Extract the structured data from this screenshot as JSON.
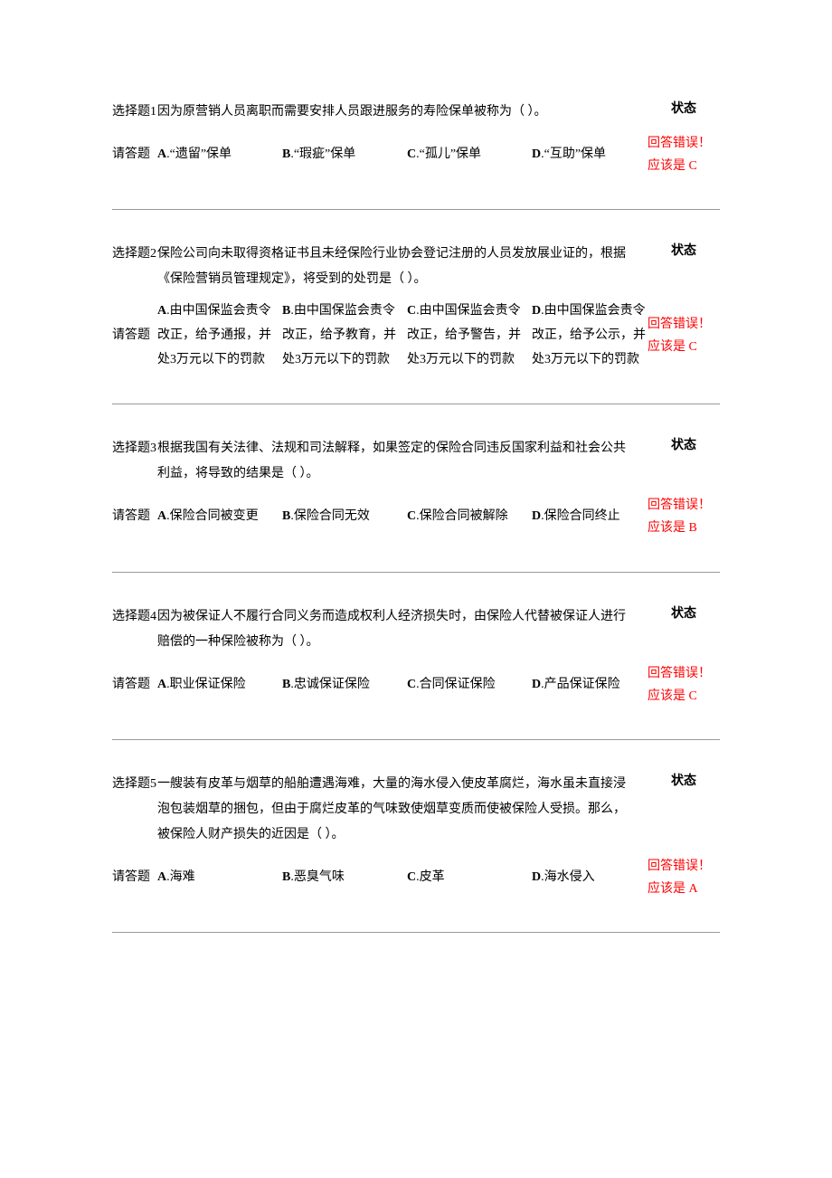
{
  "labels": {
    "status_header": "状态",
    "answer_prompt": "请答题",
    "error_line1": "回答错误！",
    "error_prefix": "应该是 "
  },
  "questions": [
    {
      "label": "选择题1",
      "text": "因为原营销人员离职而需要安排人员跟进服务的寿险保单被称为（ ）。",
      "options": [
        {
          "letter": "A",
          "text": ".“遗留”保单"
        },
        {
          "letter": "B",
          "text": ".“瑕疵”保单"
        },
        {
          "letter": "C",
          "text": ".“孤儿”保单"
        },
        {
          "letter": "D",
          "text": ".“互助”保单"
        }
      ],
      "correct": "C",
      "wrap": false
    },
    {
      "label": "选择题2",
      "text": "保险公司向未取得资格证书且未经保险行业协会登记注册的人员发放展业证的，根据《保险营销员管理规定》，将受到的处罚是（ ）。",
      "options": [
        {
          "letter": "A",
          "text": ".由中国保监会责令改正，给予通报，并处3万元以下的罚款"
        },
        {
          "letter": "B",
          "text": ".由中国保监会责令改正，给予教育，并处3万元以下的罚款"
        },
        {
          "letter": "C",
          "text": ".由中国保监会责令改正，给予警告，并处3万元以下的罚款"
        },
        {
          "letter": "D",
          "text": ".由中国保监会责令改正，给予公示，并处3万元以下的罚款"
        }
      ],
      "correct": "C",
      "wrap": true
    },
    {
      "label": "选择题3",
      "text": "根据我国有关法律、法规和司法解释，如果签定的保险合同违反国家利益和社会公共利益，将导致的结果是（ ）。",
      "options": [
        {
          "letter": "A",
          "text": ".保险合同被变更"
        },
        {
          "letter": "B",
          "text": ".保险合同无效"
        },
        {
          "letter": "C",
          "text": ".保险合同被解除"
        },
        {
          "letter": "D",
          "text": ".保险合同终止"
        }
      ],
      "correct": "B",
      "wrap": false
    },
    {
      "label": "选择题4",
      "text": "因为被保证人不履行合同义务而造成权利人经济损失时，由保险人代替被保证人进行赔偿的一种保险被称为（ ）。",
      "options": [
        {
          "letter": "A",
          "text": ".职业保证保险"
        },
        {
          "letter": "B",
          "text": ".忠诚保证保险"
        },
        {
          "letter": "C",
          "text": ".合同保证保险"
        },
        {
          "letter": "D",
          "text": ".产品保证保险"
        }
      ],
      "correct": "C",
      "wrap": false
    },
    {
      "label": "选择题5",
      "text": "一艘装有皮革与烟草的船舶遭遇海难，大量的海水侵入使皮革腐烂，海水虽未直接浸泡包装烟草的捆包，但由于腐烂皮革的气味致使烟草变质而使被保险人受损。那么，被保险人财产损失的近因是（ ）。",
      "options": [
        {
          "letter": "A",
          "text": ".海难"
        },
        {
          "letter": "B",
          "text": ".恶臭气味"
        },
        {
          "letter": "C",
          "text": ".皮革"
        },
        {
          "letter": "D",
          "text": ".海水侵入"
        }
      ],
      "correct": "A",
      "wrap": false
    }
  ],
  "styling": {
    "text_color": "#000000",
    "error_color": "#ff0000",
    "divider_color": "#999999",
    "background_color": "#ffffff",
    "base_font_size": 14,
    "font_family": "SimSun"
  }
}
